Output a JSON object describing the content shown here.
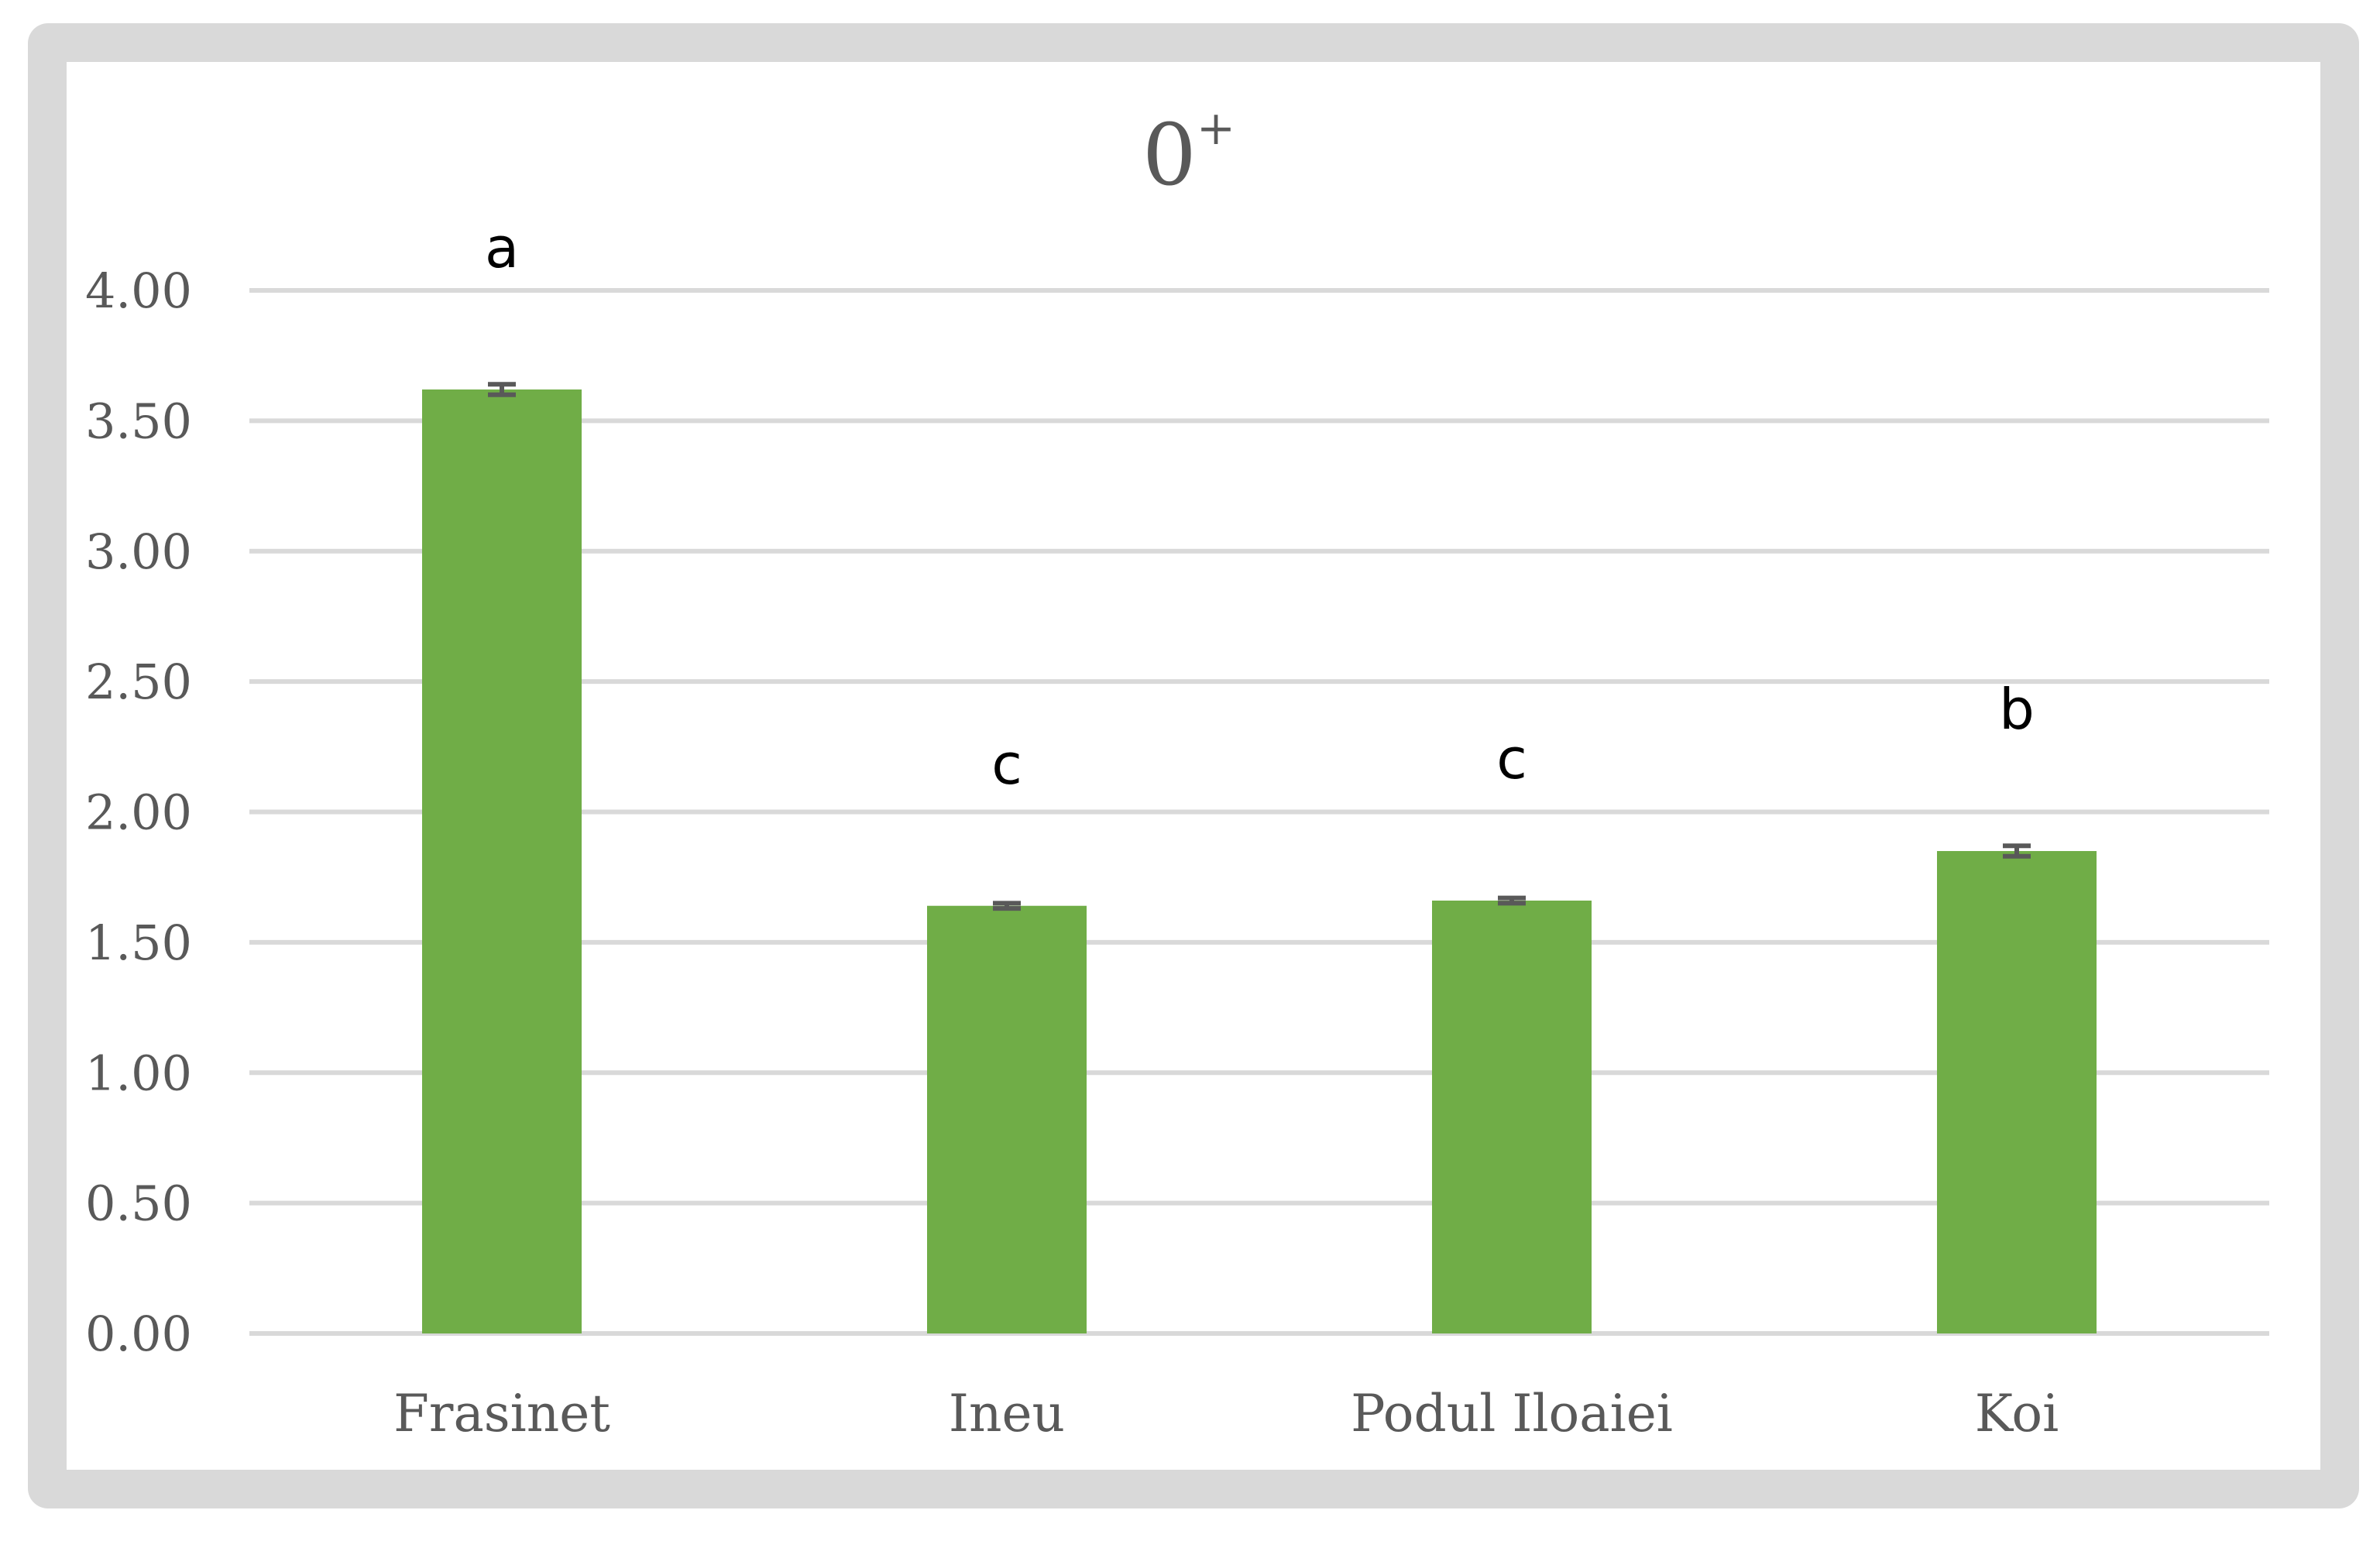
{
  "chart_data": {
    "type": "bar",
    "title": "0",
    "title_superscript": "+",
    "categories": [
      "Frasinet",
      "Ineu",
      "Podul Iloaiei",
      "Koi"
    ],
    "values": [
      3.62,
      1.64,
      1.66,
      1.85
    ],
    "errors": [
      0.02,
      0.01,
      0.01,
      0.02
    ],
    "significance_labels": [
      "a",
      "c",
      "c",
      "b"
    ],
    "y_ticks": [
      "0.00",
      "0.50",
      "1.00",
      "1.50",
      "2.00",
      "2.50",
      "3.00",
      "3.50",
      "4.00"
    ],
    "ylim": [
      0,
      4
    ],
    "grid": true,
    "legend": "none",
    "bar_color": "#70ad47",
    "gridline_color": "#d9d9d9",
    "text_color": "#595959"
  }
}
